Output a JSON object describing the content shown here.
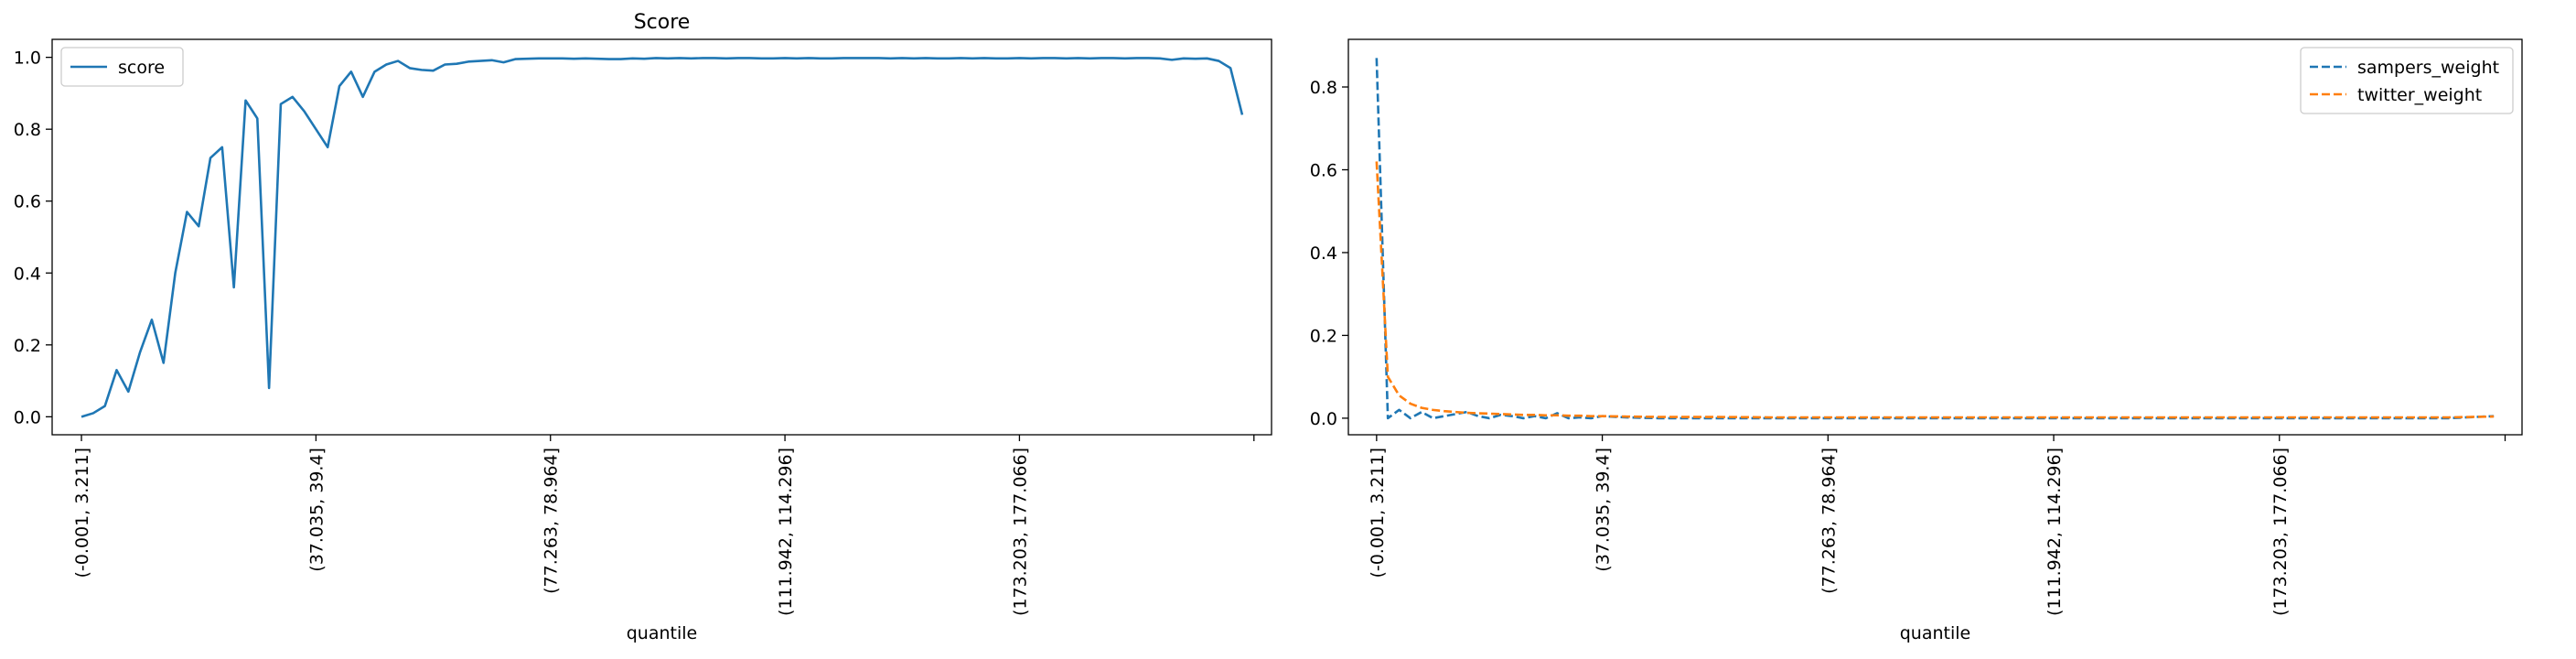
{
  "chart_data": [
    {
      "type": "line",
      "title": "Score",
      "xlabel": "quantile",
      "ylabel": "",
      "ylim": [
        -0.05,
        1.05
      ],
      "xlim": [
        -2.5,
        101.5
      ],
      "yticks": [
        0.0,
        0.2,
        0.4,
        0.6,
        0.8,
        1.0
      ],
      "ytick_labels": [
        "0.0",
        "0.2",
        "0.4",
        "0.6",
        "0.8",
        "1.0"
      ],
      "xticks": [
        0,
        20,
        40,
        60,
        80,
        100
      ],
      "xtick_labels": [
        "(-0.001, 3.211]",
        "(37.035, 39.4]",
        "(77.263, 78.964]",
        "(111.942, 114.296]",
        "(173.203, 177.066]",
        ""
      ],
      "legend": "upper left",
      "grid": false,
      "series": [
        {
          "name": "score",
          "color": "#1f77b4",
          "dash": "solid",
          "x": [
            0,
            1,
            2,
            3,
            4,
            5,
            6,
            7,
            8,
            9,
            10,
            11,
            12,
            13,
            14,
            15,
            16,
            17,
            18,
            19,
            20,
            21,
            22,
            23,
            24,
            25,
            26,
            27,
            28,
            29,
            30,
            31,
            32,
            33,
            34,
            35,
            36,
            37,
            38,
            39,
            40,
            41,
            42,
            43,
            44,
            45,
            46,
            47,
            48,
            49,
            50,
            51,
            52,
            53,
            54,
            55,
            56,
            57,
            58,
            59,
            60,
            61,
            62,
            63,
            64,
            65,
            66,
            67,
            68,
            69,
            70,
            71,
            72,
            73,
            74,
            75,
            76,
            77,
            78,
            79,
            80,
            81,
            82,
            83,
            84,
            85,
            86,
            87,
            88,
            89,
            90,
            91,
            92,
            93,
            94,
            95,
            96,
            97,
            98,
            99
          ],
          "y": [
            0.0,
            0.01,
            0.03,
            0.13,
            0.07,
            0.18,
            0.27,
            0.15,
            0.4,
            0.57,
            0.53,
            0.72,
            0.75,
            0.36,
            0.88,
            0.83,
            0.08,
            0.87,
            0.89,
            0.85,
            0.8,
            0.75,
            0.92,
            0.96,
            0.89,
            0.96,
            0.98,
            0.99,
            0.97,
            0.965,
            0.963,
            0.98,
            0.982,
            0.988,
            0.99,
            0.992,
            0.986,
            0.995,
            0.996,
            0.997,
            0.997,
            0.997,
            0.996,
            0.997,
            0.996,
            0.995,
            0.995,
            0.997,
            0.996,
            0.998,
            0.997,
            0.998,
            0.997,
            0.998,
            0.998,
            0.997,
            0.998,
            0.998,
            0.997,
            0.997,
            0.998,
            0.997,
            0.998,
            0.997,
            0.997,
            0.998,
            0.998,
            0.998,
            0.998,
            0.997,
            0.998,
            0.997,
            0.998,
            0.997,
            0.997,
            0.998,
            0.997,
            0.998,
            0.997,
            0.997,
            0.998,
            0.997,
            0.998,
            0.998,
            0.997,
            0.998,
            0.997,
            0.998,
            0.998,
            0.997,
            0.998,
            0.998,
            0.997,
            0.993,
            0.997,
            0.996,
            0.997,
            0.99,
            0.97,
            0.84
          ]
        }
      ]
    },
    {
      "type": "line",
      "title": "",
      "xlabel": "quantile",
      "ylabel": "",
      "ylim": [
        -0.04,
        0.915
      ],
      "xlim": [
        -2.5,
        101.5
      ],
      "yticks": [
        0.0,
        0.2,
        0.4,
        0.6,
        0.8
      ],
      "ytick_labels": [
        "0.0",
        "0.2",
        "0.4",
        "0.6",
        "0.8"
      ],
      "xticks": [
        0,
        20,
        40,
        60,
        80,
        100
      ],
      "xtick_labels": [
        "(-0.001, 3.211]",
        "(37.035, 39.4]",
        "(77.263, 78.964]",
        "(111.942, 114.296]",
        "(173.203, 177.066]",
        ""
      ],
      "legend": "upper right",
      "grid": false,
      "series": [
        {
          "name": "sampers_weight",
          "color": "#1f77b4",
          "dash": "dashed",
          "x": [
            0,
            1,
            2,
            3,
            4,
            5,
            6,
            7,
            8,
            9,
            10,
            11,
            12,
            13,
            14,
            15,
            16,
            17,
            18,
            19,
            20,
            22,
            25,
            30,
            35,
            40,
            45,
            50,
            55,
            60,
            65,
            70,
            75,
            80,
            85,
            90,
            95,
            99
          ],
          "y": [
            0.87,
            0.0,
            0.02,
            0.0,
            0.015,
            0.0,
            0.005,
            0.01,
            0.015,
            0.005,
            0.0,
            0.008,
            0.005,
            0.0,
            0.005,
            0.0,
            0.012,
            0.0,
            0.002,
            0.0,
            0.005,
            0.002,
            0.0,
            0.0,
            0.0,
            0.0,
            0.0,
            0.0,
            0.0,
            0.0,
            0.0,
            0.0,
            0.0,
            0.0,
            0.0,
            0.0,
            0.0,
            0.005
          ]
        },
        {
          "name": "twitter_weight",
          "color": "#ff7f0e",
          "dash": "dashed",
          "x": [
            0,
            1,
            2,
            3,
            4,
            5,
            6,
            7,
            8,
            9,
            10,
            11,
            12,
            13,
            14,
            15,
            16,
            17,
            18,
            19,
            20,
            22,
            25,
            30,
            35,
            40,
            45,
            50,
            55,
            60,
            65,
            70,
            75,
            80,
            85,
            90,
            95,
            99
          ],
          "y": [
            0.62,
            0.1,
            0.055,
            0.035,
            0.025,
            0.02,
            0.017,
            0.015,
            0.013,
            0.012,
            0.011,
            0.01,
            0.009,
            0.008,
            0.008,
            0.007,
            0.007,
            0.006,
            0.006,
            0.005,
            0.005,
            0.004,
            0.003,
            0.003,
            0.002,
            0.002,
            0.002,
            0.002,
            0.002,
            0.002,
            0.002,
            0.002,
            0.002,
            0.002,
            0.002,
            0.002,
            0.002,
            0.004
          ]
        }
      ]
    }
  ]
}
